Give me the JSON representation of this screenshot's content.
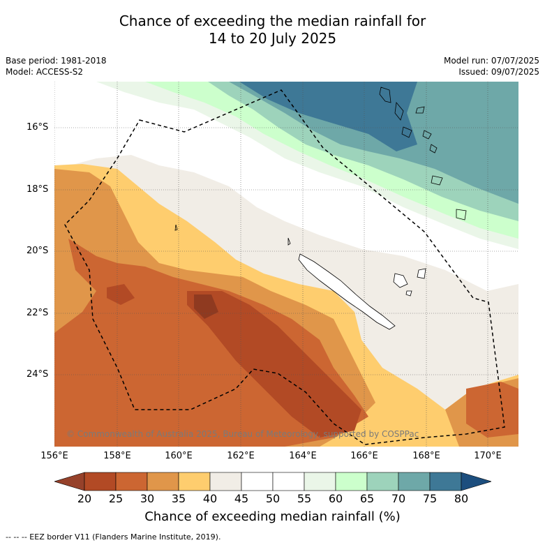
{
  "title_line1": "Chance of exceeding the median rainfall for",
  "title_line2": "14 to 20 July 2025",
  "base_period": "Base period: 1981-2018",
  "model": "Model: ACCESS-S2",
  "model_run": "Model run: 07/07/2025",
  "issued": "Issued: 09/07/2025",
  "lat_labels": [
    "16°S",
    "18°S",
    "20°S",
    "22°S",
    "24°S"
  ],
  "lon_labels": [
    "156°E",
    "158°E",
    "160°E",
    "162°E",
    "164°E",
    "166°E",
    "168°E",
    "170°E"
  ],
  "copyright": "© Commonwealth of Australia 2025, Bureau of Meteorology, supported by COSPPac",
  "colorbar": {
    "ticks": [
      "20",
      "25",
      "30",
      "35",
      "40",
      "45",
      "50",
      "55",
      "60",
      "65",
      "70",
      "75",
      "80"
    ],
    "colors": [
      "#b24a25",
      "#cc6632",
      "#e0964a",
      "#fecd6e",
      "#f1ede6",
      "#ffffff",
      "#ffffff",
      "#eaf6e8",
      "#ccffcc",
      "#9dd3bb",
      "#6ea8a8",
      "#3e7896"
    ],
    "under_color": "#96412a",
    "over_color": "#1c4e7e",
    "title": "Chance of exceeding median rainfall (%)"
  },
  "footnote": "--  --  -- EEZ border V11 (Flanders Marine Institute, 2019)."
}
